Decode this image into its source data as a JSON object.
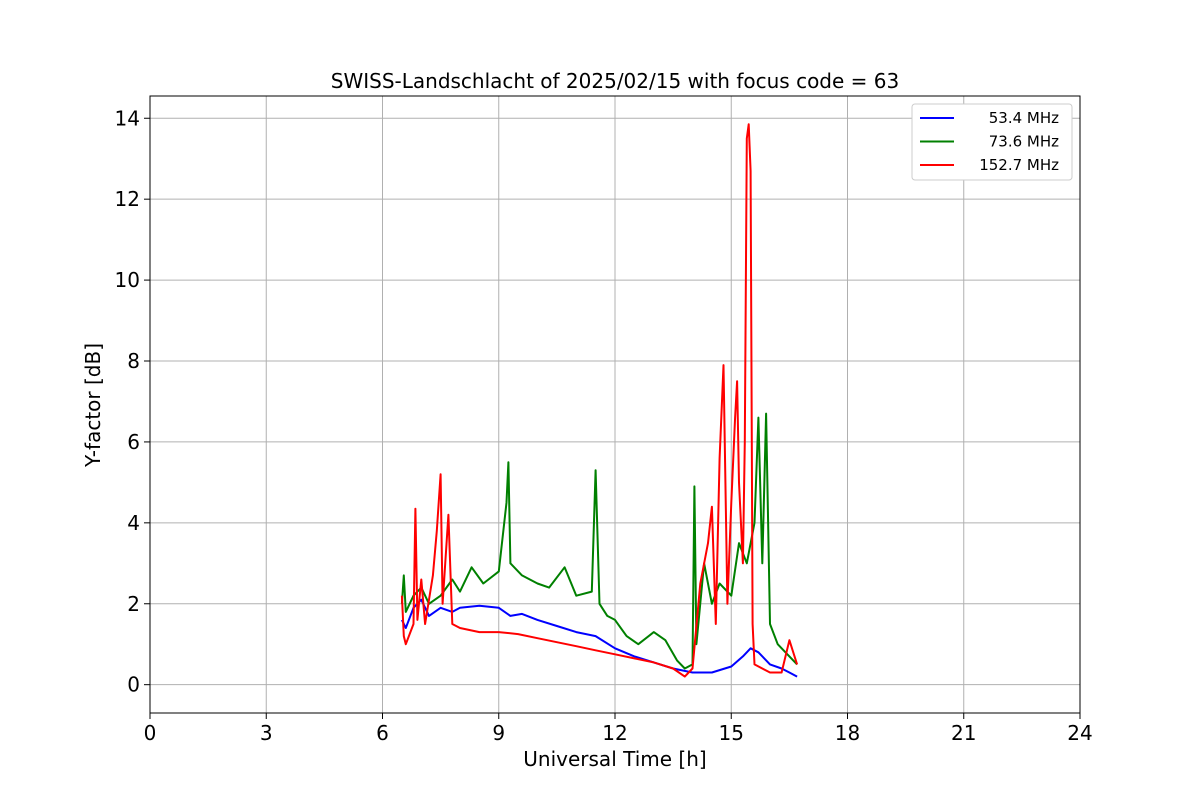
{
  "chart_data": {
    "type": "line",
    "title": "SWISS-Landschlacht of 2025/02/15 with focus code = 63",
    "xlabel": "Universal Time [h]",
    "ylabel": "Y-factor [dB]",
    "xlim": [
      0,
      24
    ],
    "ylim": [
      -0.7,
      14.55
    ],
    "xticks": [
      0,
      3,
      6,
      9,
      12,
      15,
      18,
      21,
      24
    ],
    "yticks": [
      0,
      2,
      4,
      6,
      8,
      10,
      12,
      14
    ],
    "grid": true,
    "legend_position": "top-right",
    "series": [
      {
        "name": "53.4 MHz",
        "color": "#0000ff",
        "points": [
          [
            6.5,
            1.6
          ],
          [
            6.6,
            1.4
          ],
          [
            6.8,
            1.9
          ],
          [
            7.0,
            2.1
          ],
          [
            7.2,
            1.7
          ],
          [
            7.5,
            1.9
          ],
          [
            7.8,
            1.8
          ],
          [
            8.0,
            1.9
          ],
          [
            8.5,
            1.95
          ],
          [
            9.0,
            1.9
          ],
          [
            9.3,
            1.7
          ],
          [
            9.6,
            1.75
          ],
          [
            10.0,
            1.6
          ],
          [
            10.5,
            1.45
          ],
          [
            11.0,
            1.3
          ],
          [
            11.5,
            1.2
          ],
          [
            12.0,
            0.9
          ],
          [
            12.5,
            0.7
          ],
          [
            13.0,
            0.55
          ],
          [
            13.5,
            0.4
          ],
          [
            14.0,
            0.3
          ],
          [
            14.5,
            0.3
          ],
          [
            15.0,
            0.45
          ],
          [
            15.3,
            0.7
          ],
          [
            15.5,
            0.9
          ],
          [
            15.7,
            0.8
          ],
          [
            16.0,
            0.5
          ],
          [
            16.3,
            0.4
          ],
          [
            16.5,
            0.3
          ],
          [
            16.7,
            0.2
          ]
        ]
      },
      {
        "name": "73.6 MHz",
        "color": "#008000",
        "points": [
          [
            6.5,
            2.0
          ],
          [
            6.55,
            2.7
          ],
          [
            6.6,
            1.8
          ],
          [
            6.8,
            2.2
          ],
          [
            7.0,
            2.4
          ],
          [
            7.2,
            2.0
          ],
          [
            7.5,
            2.2
          ],
          [
            7.8,
            2.6
          ],
          [
            8.0,
            2.3
          ],
          [
            8.3,
            2.9
          ],
          [
            8.6,
            2.5
          ],
          [
            9.0,
            2.8
          ],
          [
            9.2,
            4.5
          ],
          [
            9.25,
            5.5
          ],
          [
            9.3,
            3.0
          ],
          [
            9.6,
            2.7
          ],
          [
            10.0,
            2.5
          ],
          [
            10.3,
            2.4
          ],
          [
            10.7,
            2.9
          ],
          [
            11.0,
            2.2
          ],
          [
            11.4,
            2.3
          ],
          [
            11.5,
            5.3
          ],
          [
            11.6,
            2.0
          ],
          [
            11.8,
            1.7
          ],
          [
            12.0,
            1.6
          ],
          [
            12.3,
            1.2
          ],
          [
            12.6,
            1.0
          ],
          [
            13.0,
            1.3
          ],
          [
            13.3,
            1.1
          ],
          [
            13.6,
            0.6
          ],
          [
            13.8,
            0.4
          ],
          [
            14.0,
            0.5
          ],
          [
            14.05,
            4.9
          ],
          [
            14.1,
            1.0
          ],
          [
            14.3,
            3.0
          ],
          [
            14.5,
            2.0
          ],
          [
            14.7,
            2.5
          ],
          [
            15.0,
            2.2
          ],
          [
            15.2,
            3.5
          ],
          [
            15.4,
            3.0
          ],
          [
            15.6,
            4.0
          ],
          [
            15.7,
            6.6
          ],
          [
            15.8,
            3.0
          ],
          [
            15.9,
            6.7
          ],
          [
            16.0,
            1.5
          ],
          [
            16.2,
            1.0
          ],
          [
            16.5,
            0.7
          ],
          [
            16.7,
            0.5
          ]
        ]
      },
      {
        "name": "152.7 MHz",
        "color": "#ff0000",
        "points": [
          [
            6.5,
            2.2
          ],
          [
            6.55,
            1.2
          ],
          [
            6.6,
            1.0
          ],
          [
            6.8,
            1.5
          ],
          [
            6.85,
            4.35
          ],
          [
            6.9,
            1.6
          ],
          [
            7.0,
            2.6
          ],
          [
            7.1,
            1.5
          ],
          [
            7.3,
            2.7
          ],
          [
            7.4,
            3.8
          ],
          [
            7.5,
            5.2
          ],
          [
            7.55,
            2.0
          ],
          [
            7.7,
            4.2
          ],
          [
            7.8,
            1.5
          ],
          [
            8.0,
            1.4
          ],
          [
            8.5,
            1.3
          ],
          [
            9.0,
            1.3
          ],
          [
            9.5,
            1.25
          ],
          [
            10.0,
            1.15
          ],
          [
            10.5,
            1.05
          ],
          [
            11.0,
            0.95
          ],
          [
            11.5,
            0.85
          ],
          [
            12.0,
            0.75
          ],
          [
            12.5,
            0.65
          ],
          [
            13.0,
            0.55
          ],
          [
            13.5,
            0.4
          ],
          [
            13.8,
            0.2
          ],
          [
            14.0,
            0.4
          ],
          [
            14.2,
            2.5
          ],
          [
            14.4,
            3.5
          ],
          [
            14.5,
            4.4
          ],
          [
            14.6,
            1.5
          ],
          [
            14.7,
            5.6
          ],
          [
            14.8,
            7.9
          ],
          [
            14.9,
            2.0
          ],
          [
            15.0,
            4.5
          ],
          [
            15.1,
            6.6
          ],
          [
            15.15,
            7.5
          ],
          [
            15.2,
            5.0
          ],
          [
            15.3,
            3.0
          ],
          [
            15.35,
            6.0
          ],
          [
            15.4,
            13.5
          ],
          [
            15.45,
            13.85
          ],
          [
            15.5,
            12.7
          ],
          [
            15.55,
            1.5
          ],
          [
            15.6,
            0.5
          ],
          [
            15.8,
            0.4
          ],
          [
            16.0,
            0.3
          ],
          [
            16.3,
            0.3
          ],
          [
            16.5,
            1.1
          ],
          [
            16.7,
            0.5
          ]
        ]
      }
    ]
  }
}
